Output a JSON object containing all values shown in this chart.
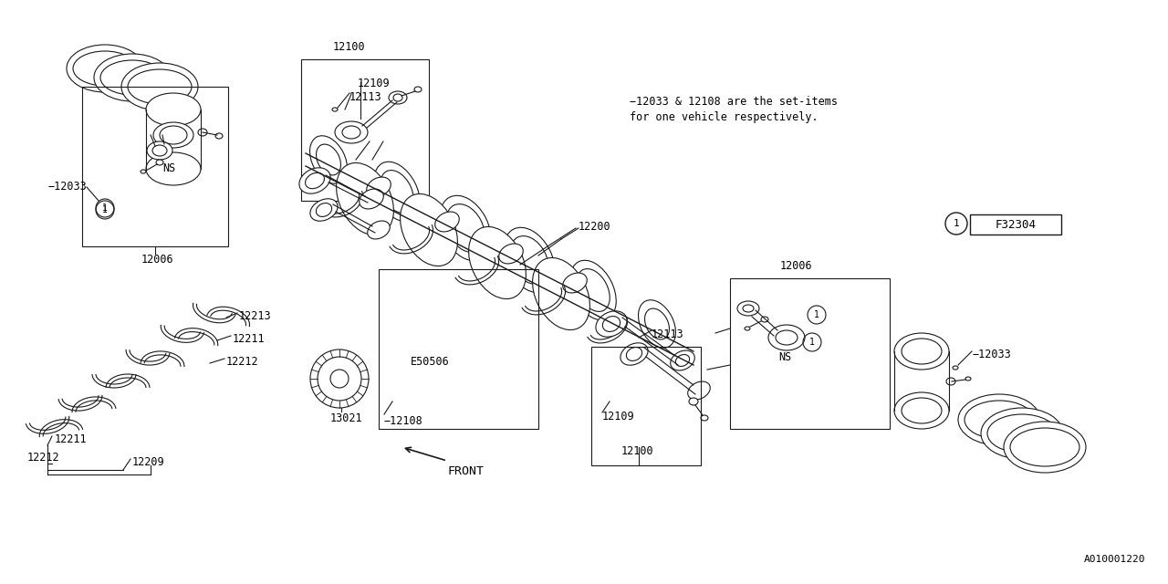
{
  "bg_color": "#ffffff",
  "line_color": "#1a1a1a",
  "note_text1": "−12033 & 12108 are the set-items",
  "note_text2": "for one vehicle respectively.",
  "diagram_id": "A010001220",
  "font_family": "monospace",
  "font_size": 8.5
}
